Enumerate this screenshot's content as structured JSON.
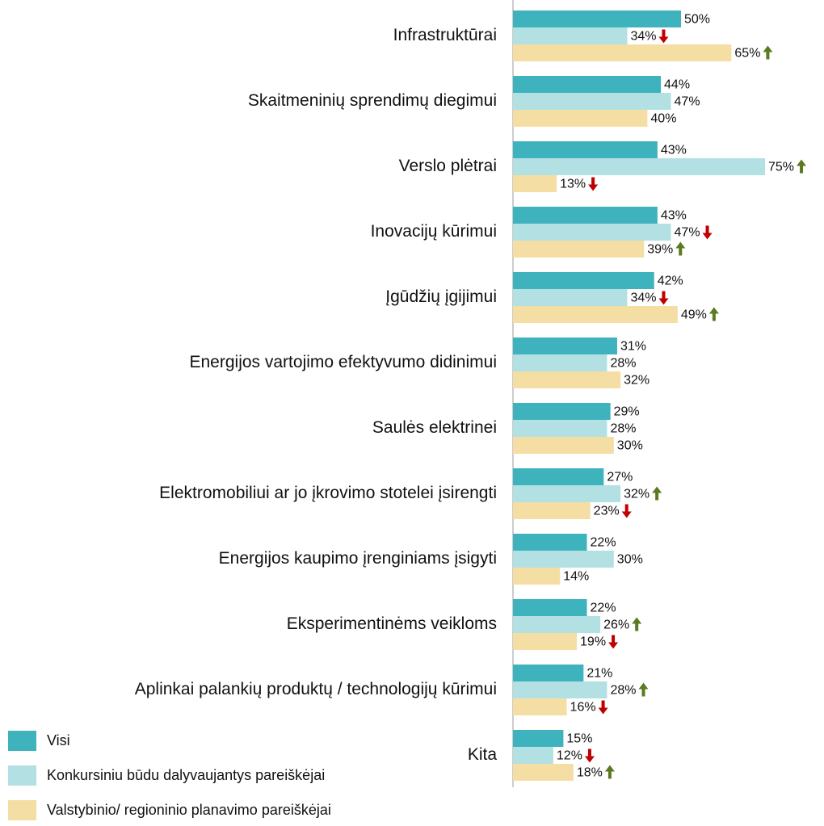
{
  "chart_data": {
    "type": "bar",
    "orientation": "horizontal",
    "categories": [
      "Infrastruktūrai",
      "Skaitmeninių sprendimų diegimui",
      "Verslo plėtrai",
      "Inovacijų kūrimui",
      "Įgūdžių įgijimui",
      "Energijos vartojimo efektyvumo didinimui",
      "Saulės elektrinei",
      "Elektromobiliui ar jo įkrovimo stotelei įsirengti",
      "Energijos kaupimo įrenginiams įsigyti",
      "Eksperimentinėms veikloms",
      "Aplinkai palankių produktų / technologijų kūrimui",
      "Kita"
    ],
    "series": [
      {
        "name": "Visi",
        "color": "#3fb3bd",
        "values": [
          50,
          44,
          43,
          43,
          42,
          31,
          29,
          27,
          22,
          22,
          21,
          15
        ],
        "value_labels": [
          "50%",
          "44%",
          "43%",
          "43%",
          "42%",
          "31%",
          "29%",
          "27%",
          "22%",
          "22%",
          "21%",
          "15%"
        ],
        "trend": [
          null,
          null,
          null,
          null,
          null,
          null,
          null,
          null,
          null,
          null,
          null,
          null
        ]
      },
      {
        "name": "Konkursiniu būdu dalyvaujantys pareiškėjai",
        "color": "#b3e0e3",
        "values": [
          34,
          47,
          75,
          47,
          34,
          28,
          28,
          32,
          30,
          26,
          28,
          12
        ],
        "value_labels": [
          "34%",
          "47%",
          "75%",
          "47%",
          "34%",
          "28%",
          "28%",
          "32%",
          "30%",
          "26%",
          "28%",
          "12%"
        ],
        "trend": [
          "down",
          null,
          "up",
          "down",
          "down",
          null,
          null,
          "up",
          null,
          "up",
          "up",
          "down"
        ]
      },
      {
        "name": "Valstybinio/ regioninio planavimo pareiškėjai",
        "color": "#f5dea3",
        "values": [
          65,
          40,
          13,
          39,
          49,
          32,
          30,
          23,
          14,
          19,
          16,
          18
        ],
        "value_labels": [
          "65%",
          "40%",
          "13%",
          "39%",
          "49%",
          "32%",
          "30%",
          "23%",
          "14%",
          "19%",
          "16%",
          "18%"
        ],
        "trend": [
          "up",
          null,
          "down",
          "up",
          "up",
          null,
          null,
          "down",
          null,
          "down",
          "down",
          "up"
        ]
      }
    ],
    "xlim": [
      0,
      100
    ],
    "legend": "bottom-left",
    "up_color": "#5b7a1f",
    "down_color": "#c00000"
  }
}
